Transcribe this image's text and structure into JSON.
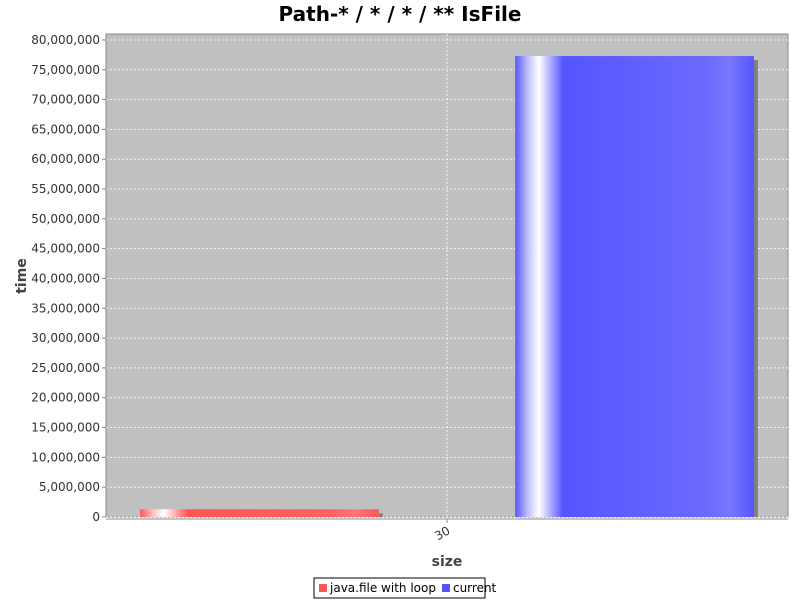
{
  "chart_data": {
    "type": "bar",
    "title": "Path-* / * / * / ** IsFile",
    "xlabel": "size",
    "ylabel": "time",
    "categories": [
      "30"
    ],
    "series": [
      {
        "name": "java.file with loop",
        "values": [
          1300000
        ],
        "color": "#ff5555"
      },
      {
        "name": "current",
        "values": [
          77300000
        ],
        "color": "#5555ff"
      }
    ],
    "ylim": [
      0,
      81000000
    ],
    "y_ticks": [
      "0",
      "5,000,000",
      "10,000,000",
      "15,000,000",
      "20,000,000",
      "25,000,000",
      "30,000,000",
      "35,000,000",
      "40,000,000",
      "45,000,000",
      "50,000,000",
      "55,000,000",
      "60,000,000",
      "65,000,000",
      "70,000,000",
      "75,000,000",
      "80,000,000"
    ],
    "y_tick_values": [
      0,
      5000000,
      10000000,
      15000000,
      20000000,
      25000000,
      30000000,
      35000000,
      40000000,
      45000000,
      50000000,
      55000000,
      60000000,
      65000000,
      70000000,
      75000000,
      80000000
    ],
    "grid": true,
    "legend_position": "bottom",
    "plot_background": "#c0c0c0"
  }
}
